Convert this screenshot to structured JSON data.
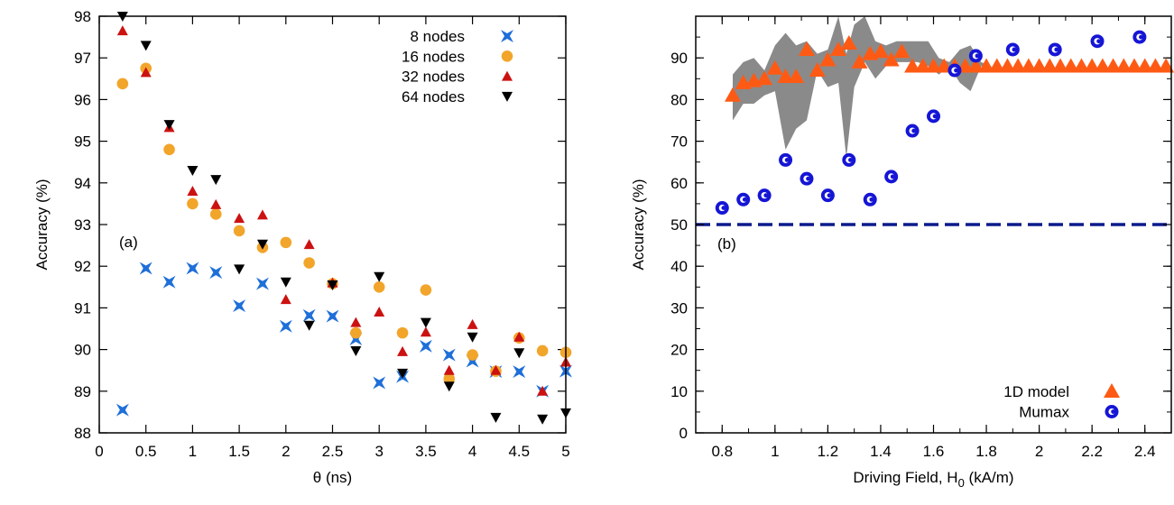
{
  "chart_data": [
    {
      "panel": "(a)",
      "type": "scatter",
      "xlabel": "θ (ns)",
      "ylabel": "Accuracy (%)",
      "xlim": [
        0,
        5
      ],
      "ylim": [
        88,
        98
      ],
      "xticks": [
        "0",
        "0.5",
        "1",
        "1.5",
        "2",
        "2.5",
        "3",
        "3.5",
        "4",
        "4.5",
        "5"
      ],
      "yticks": [
        "88",
        "89",
        "90",
        "91",
        "92",
        "93",
        "94",
        "95",
        "96",
        "97",
        "98"
      ],
      "legend_position": "top-right",
      "grid": false,
      "series": [
        {
          "name": "8 nodes",
          "marker": "bowtie",
          "color": "#1e6fd9",
          "x": [
            0.25,
            0.5,
            0.75,
            1.0,
            1.25,
            1.5,
            1.75,
            2.0,
            2.25,
            2.5,
            2.75,
            3.0,
            3.25,
            3.5,
            3.75,
            4.0,
            4.25,
            4.5,
            4.75,
            5.0
          ],
          "y": [
            88.55,
            91.95,
            91.62,
            91.95,
            91.85,
            91.05,
            91.58,
            90.56,
            90.82,
            90.8,
            90.25,
            89.2,
            89.35,
            90.08,
            89.87,
            89.72,
            89.47,
            89.47,
            89.0,
            89.48
          ]
        },
        {
          "name": "16 nodes",
          "marker": "circle",
          "color": "#f2a52b",
          "x": [
            0.25,
            0.5,
            0.75,
            1.0,
            1.25,
            1.5,
            1.75,
            2.0,
            2.25,
            2.5,
            2.75,
            3.0,
            3.25,
            3.5,
            3.75,
            4.0,
            4.25,
            4.5,
            4.75,
            5.0
          ],
          "y": [
            96.38,
            96.75,
            94.8,
            93.5,
            93.25,
            92.85,
            92.45,
            92.57,
            92.08,
            91.58,
            90.4,
            91.5,
            90.4,
            91.43,
            89.3,
            89.87,
            89.48,
            90.28,
            89.97,
            89.93
          ]
        },
        {
          "name": "32 nodes",
          "marker": "triangle-up",
          "color": "#cc1111",
          "x": [
            0.25,
            0.5,
            0.75,
            1.0,
            1.25,
            1.5,
            1.75,
            2.0,
            2.25,
            2.5,
            2.75,
            3.0,
            3.25,
            3.5,
            3.75,
            4.0,
            4.25,
            4.5,
            4.75,
            5.0
          ],
          "y": [
            97.65,
            96.65,
            95.33,
            93.8,
            93.48,
            93.15,
            93.23,
            91.2,
            92.52,
            91.6,
            90.65,
            90.9,
            89.95,
            90.42,
            89.5,
            90.6,
            89.5,
            90.3,
            89.0,
            89.7
          ]
        },
        {
          "name": "64 nodes",
          "marker": "triangle-down",
          "color": "#000000",
          "x": [
            0.25,
            0.5,
            0.75,
            1.0,
            1.25,
            1.5,
            1.75,
            2.0,
            2.25,
            2.5,
            2.75,
            3.0,
            3.25,
            3.5,
            3.75,
            4.0,
            4.25,
            4.5,
            4.75,
            5.0
          ],
          "y": [
            98.0,
            97.3,
            95.4,
            94.3,
            94.08,
            91.93,
            92.53,
            91.62,
            90.58,
            91.55,
            89.97,
            91.75,
            89.43,
            90.65,
            89.12,
            90.3,
            88.37,
            89.92,
            88.33,
            88.48
          ]
        }
      ]
    },
    {
      "panel": "(b)",
      "type": "scatter",
      "xlabel": "Driving Field, H",
      "xlabel_sub": "0",
      "xlabel_unit": " (kA/m)",
      "ylabel": "Accuracy (%)",
      "xlim": [
        0.7,
        2.5
      ],
      "ylim": [
        0,
        100
      ],
      "xticks": [
        "0.8",
        "1",
        "1.2",
        "1.4",
        "1.6",
        "1.8",
        "2",
        "2.2",
        "2.4"
      ],
      "yticks": [
        "0",
        "10",
        "20",
        "30",
        "40",
        "50",
        "60",
        "70",
        "80",
        "90"
      ],
      "legend_position": "bottom-right",
      "grid": false,
      "reference_line": {
        "y": 50,
        "style": "dashed",
        "color": "#0b1a8c"
      },
      "band_color": "#8a8a8a",
      "band": {
        "x": [
          0.84,
          0.88,
          0.92,
          0.96,
          1.0,
          1.04,
          1.08,
          1.12,
          1.16,
          1.2,
          1.24,
          1.27,
          1.3,
          1.34,
          1.38,
          1.42,
          1.46,
          1.5,
          1.54,
          1.58,
          1.62,
          1.66,
          1.7,
          1.74,
          1.78,
          1.82
        ],
        "upper": [
          86,
          89,
          90,
          87,
          93,
          96,
          93,
          94,
          91,
          92,
          100,
          91,
          98,
          100,
          94,
          93,
          94,
          94,
          94,
          94,
          90,
          89,
          92,
          93,
          89,
          88
        ],
        "lower": [
          75,
          79,
          79,
          81,
          82,
          68,
          73,
          75,
          87,
          83,
          84,
          66,
          83,
          89,
          85,
          88,
          89,
          89,
          89,
          88,
          86,
          88,
          84,
          82,
          88,
          88
        ]
      },
      "series": [
        {
          "name": "1D model",
          "marker": "triangle-up",
          "color": "#ff5a14",
          "x": [
            0.84,
            0.88,
            0.92,
            0.96,
            1.0,
            1.04,
            1.08,
            1.12,
            1.16,
            1.2,
            1.24,
            1.28,
            1.32,
            1.36,
            1.4,
            1.44,
            1.48,
            1.52,
            1.56,
            1.6,
            1.64,
            1.68,
            1.72,
            1.76,
            1.8,
            1.84,
            1.88,
            1.92,
            1.96,
            2.0,
            2.04,
            2.08,
            2.12,
            2.16,
            2.2,
            2.24,
            2.28,
            2.32,
            2.36,
            2.4,
            2.44,
            2.48
          ],
          "y": [
            81,
            84,
            84.5,
            85,
            87.5,
            85.5,
            85.5,
            92,
            87,
            89.5,
            92,
            93.5,
            89,
            91,
            91.5,
            89.5,
            91.5,
            88,
            88,
            88,
            88,
            88,
            88,
            88,
            88,
            88,
            88,
            88,
            88,
            88,
            88,
            88,
            88,
            88,
            88,
            88,
            88,
            88,
            88,
            88,
            88,
            88
          ]
        },
        {
          "name": "Mumax",
          "marker": "circle-open",
          "color": "#1515d6",
          "x": [
            0.8,
            0.88,
            0.96,
            1.04,
            1.12,
            1.2,
            1.28,
            1.36,
            1.44,
            1.52,
            1.6,
            1.68,
            1.76,
            1.9,
            2.06,
            2.22,
            2.38
          ],
          "y": [
            54,
            56,
            57,
            65.5,
            61,
            57,
            65.5,
            56,
            61.5,
            72.5,
            76,
            87,
            90.5,
            92,
            92,
            94,
            95
          ]
        }
      ]
    }
  ]
}
